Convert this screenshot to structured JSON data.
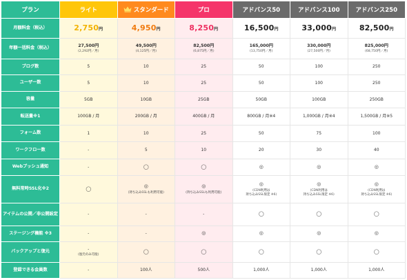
{
  "header": {
    "plan_label": "プラン",
    "plans": [
      "ライト",
      "スタンダード",
      "プロ",
      "アドバンス50",
      "アドバンス100",
      "アドバンス250"
    ]
  },
  "rows": {
    "monthly": {
      "label": "月額料金（税込）",
      "values": [
        "2,750",
        "4,950",
        "8,250",
        "16,500",
        "33,000",
        "82,500"
      ],
      "unit": "円"
    },
    "yearly": {
      "label": "年額一括料金（税込）",
      "values": [
        "27,500円",
        "49,500円",
        "82,500円",
        "165,000円",
        "330,000円",
        "825,000円"
      ],
      "subs": [
        "(2,292円／月)",
        "(4,125円／月)",
        "(6,875円／月)",
        "(13,750円／月)",
        "(27,500円／月)",
        "(68,750円／月)"
      ]
    },
    "blogs": {
      "label": "ブログ数",
      "values": [
        "5",
        "10",
        "25",
        "50",
        "100",
        "250"
      ]
    },
    "users": {
      "label": "ユーザー数",
      "values": [
        "5",
        "10",
        "25",
        "50",
        "100",
        "250"
      ]
    },
    "storage": {
      "label": "容量",
      "values": [
        "5GB",
        "10GB",
        "25GB",
        "50GB",
        "100GB",
        "250GB"
      ]
    },
    "transfer": {
      "label": "転送量※1",
      "values": [
        "100GB / 月",
        "200GB / 月",
        "400GB / 月",
        "800GB / 月※4",
        "1,000GB / 月※4",
        "1,500GB / 月※5"
      ]
    },
    "forms": {
      "label": "フォーム数",
      "values": [
        "1",
        "10",
        "25",
        "50",
        "75",
        "100"
      ]
    },
    "workflows": {
      "label": "ワークフロー数",
      "values": [
        "-",
        "5",
        "10",
        "20",
        "30",
        "40"
      ]
    },
    "webpush": {
      "label": "Webプッシュ通知",
      "values": [
        "-",
        "◯",
        "◯",
        "◎",
        "◎",
        "◎"
      ]
    },
    "ssl": {
      "label": "無料常時SSL化※2",
      "values": [
        "◯",
        "◎",
        "◎",
        "◎",
        "◎",
        "◎"
      ],
      "notes": [
        "",
        "(持ち込みSSLも利用可能)",
        "(持ち込みSSLも利用可能)",
        "(CDN利用は\n持ち込みSSL限定 ※6)",
        "(CDN利用は\n持ち込みSSL限定 ※6)",
        "(CDN利用は\n持ち込みSSL限定 ※6)"
      ]
    },
    "apps": {
      "label": "アイテムの公開／非公開設定",
      "values": [
        "-",
        "-",
        "-",
        "◯",
        "◯",
        "◯"
      ]
    },
    "staging": {
      "label": "ステージング機能 ※3",
      "values": [
        "-",
        "-",
        "◎",
        "◎",
        "◎",
        "◎"
      ]
    },
    "backup": {
      "label": "バックアップと復元",
      "values": [
        "-",
        "◯",
        "◯",
        "◯",
        "◯",
        "◯"
      ],
      "notes": [
        "(復元のみ可能)",
        "",
        "",
        "",
        "",
        ""
      ]
    },
    "members": {
      "label": "登録できる会員数",
      "values": [
        "-",
        "100人",
        "500人",
        "1,000人",
        "1,000人",
        "1,000人"
      ]
    }
  },
  "colors": {
    "label_bg": "#2dbc96",
    "lite": "#ffc60a",
    "standard": "#ff8a1e",
    "pro": "#f5356a",
    "advance": "#6b6b6b"
  },
  "icons": {
    "standard_badge": "crown-icon"
  }
}
